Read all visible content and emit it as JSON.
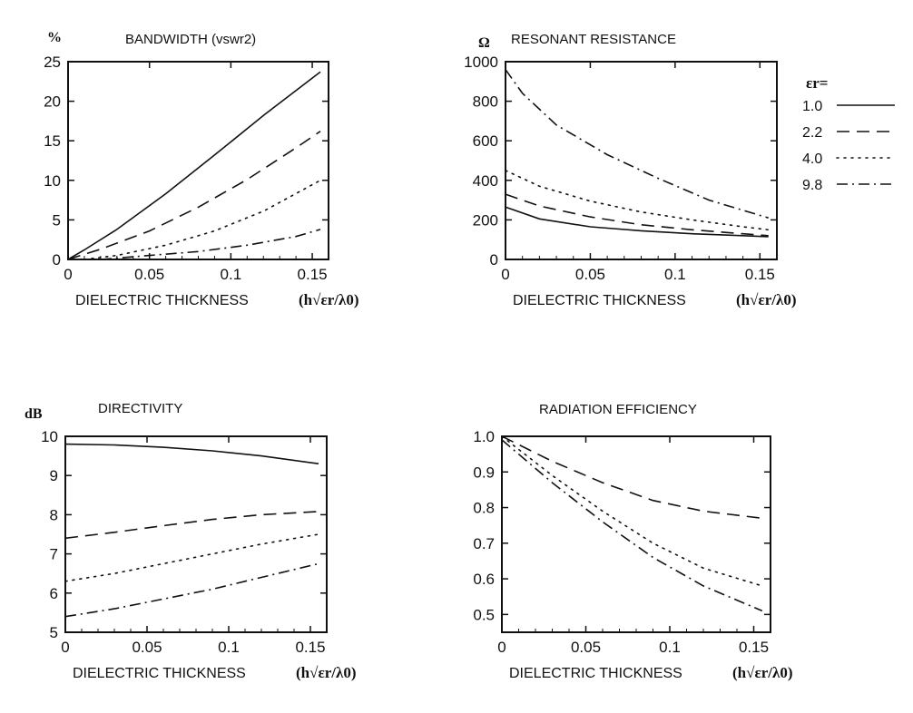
{
  "x_axis_label": "DIELECTRIC THICKNESS",
  "x_axis_symbol": "(h√εr/λ0)",
  "chart_data": [
    {
      "type": "line",
      "title": "BANDWIDTH (vswr2)",
      "ylabel": "%",
      "xlim": [
        0,
        0.16
      ],
      "ylim": [
        0,
        25
      ],
      "xticks": [
        "0",
        "0.05",
        "0.1",
        "0.15"
      ],
      "xtick_values": [
        0,
        0.05,
        0.1,
        0.15
      ],
      "yticks": [
        "0",
        "5",
        "10",
        "15",
        "20",
        "25"
      ],
      "ytick_values": [
        0,
        5,
        10,
        15,
        20,
        25
      ],
      "series": [
        {
          "name": "1.0",
          "style": "solid",
          "x": [
            0,
            0.01,
            0.03,
            0.06,
            0.09,
            0.12,
            0.155
          ],
          "y": [
            0,
            1.2,
            3.8,
            8.3,
            13.2,
            18.2,
            23.7
          ]
        },
        {
          "name": "2.2",
          "style": "dashed",
          "x": [
            0,
            0.02,
            0.05,
            0.08,
            0.11,
            0.14,
            0.155
          ],
          "y": [
            0,
            1.3,
            3.6,
            6.6,
            10.1,
            14.1,
            16.2
          ]
        },
        {
          "name": "4.0",
          "style": "dotted",
          "x": [
            0.01,
            0.03,
            0.06,
            0.09,
            0.12,
            0.155
          ],
          "y": [
            0,
            0.5,
            1.8,
            3.6,
            6.1,
            10.0
          ]
        },
        {
          "name": "9.8",
          "style": "dashdot",
          "x": [
            0.02,
            0.05,
            0.08,
            0.11,
            0.14,
            0.155
          ],
          "y": [
            0,
            0.5,
            1.0,
            1.8,
            2.9,
            3.8
          ]
        }
      ]
    },
    {
      "type": "line",
      "title": "RESONANT RESISTANCE",
      "ylabel": "Ω",
      "xlim": [
        0,
        0.16
      ],
      "ylim": [
        0,
        1000
      ],
      "xticks": [
        "0",
        "0.05",
        "0.1",
        "0.15"
      ],
      "xtick_values": [
        0,
        0.05,
        0.1,
        0.15
      ],
      "yticks": [
        "0",
        "200",
        "400",
        "600",
        "800",
        "1000"
      ],
      "ytick_values": [
        0,
        200,
        400,
        600,
        800,
        1000
      ],
      "series": [
        {
          "name": "1.0",
          "style": "solid",
          "x": [
            0,
            0.02,
            0.05,
            0.08,
            0.11,
            0.14,
            0.155
          ],
          "y": [
            265,
            205,
            165,
            145,
            130,
            120,
            115
          ]
        },
        {
          "name": "2.2",
          "style": "dashed",
          "x": [
            0,
            0.02,
            0.05,
            0.08,
            0.11,
            0.14,
            0.155
          ],
          "y": [
            330,
            270,
            215,
            175,
            150,
            130,
            120
          ]
        },
        {
          "name": "4.0",
          "style": "dotted",
          "x": [
            0,
            0.02,
            0.05,
            0.08,
            0.11,
            0.14,
            0.155
          ],
          "y": [
            450,
            370,
            295,
            240,
            200,
            165,
            150
          ]
        },
        {
          "name": "9.8",
          "style": "dashdot",
          "x": [
            0,
            0.01,
            0.03,
            0.06,
            0.09,
            0.12,
            0.155
          ],
          "y": [
            960,
            840,
            680,
            530,
            410,
            300,
            210
          ]
        }
      ]
    },
    {
      "type": "line",
      "title": "DIRECTIVITY",
      "ylabel": "dB",
      "xlim": [
        0,
        0.16
      ],
      "ylim": [
        5,
        10
      ],
      "xticks": [
        "0",
        "0.05",
        "0.1",
        "0.15"
      ],
      "xtick_values": [
        0,
        0.05,
        0.1,
        0.15
      ],
      "yticks": [
        "5",
        "6",
        "7",
        "8",
        "9",
        "10"
      ],
      "ytick_values": [
        5,
        6,
        7,
        8,
        9,
        10
      ],
      "series": [
        {
          "name": "1.0",
          "style": "solid",
          "x": [
            0,
            0.03,
            0.06,
            0.09,
            0.12,
            0.155
          ],
          "y": [
            9.8,
            9.78,
            9.72,
            9.63,
            9.5,
            9.3
          ]
        },
        {
          "name": "2.2",
          "style": "dashed",
          "x": [
            0,
            0.03,
            0.06,
            0.09,
            0.12,
            0.155
          ],
          "y": [
            7.4,
            7.55,
            7.72,
            7.88,
            8.0,
            8.08
          ]
        },
        {
          "name": "4.0",
          "style": "dotted",
          "x": [
            0,
            0.03,
            0.06,
            0.09,
            0.12,
            0.155
          ],
          "y": [
            6.3,
            6.5,
            6.75,
            7.0,
            7.25,
            7.5
          ]
        },
        {
          "name": "9.8",
          "style": "dashdot",
          "x": [
            0,
            0.03,
            0.06,
            0.09,
            0.12,
            0.155
          ],
          "y": [
            5.4,
            5.6,
            5.85,
            6.1,
            6.4,
            6.75
          ]
        }
      ]
    },
    {
      "type": "line",
      "title": "RADIATION EFFICIENCY",
      "ylabel": "",
      "xlim": [
        0,
        0.16
      ],
      "ylim": [
        0.45,
        1.0
      ],
      "xticks": [
        "0",
        "0.05",
        "0.1",
        "0.15"
      ],
      "xtick_values": [
        0,
        0.05,
        0.1,
        0.15
      ],
      "yticks": [
        "0.5",
        "0.6",
        "0.7",
        "0.8",
        "0.9",
        "1.0"
      ],
      "ytick_values": [
        0.5,
        0.6,
        0.7,
        0.8,
        0.9,
        1.0
      ],
      "series": [
        {
          "name": "1.0",
          "style": "solid",
          "x": [
            0,
            0.155
          ],
          "y": [
            1.0,
            1.0
          ]
        },
        {
          "name": "2.2",
          "style": "dashed",
          "x": [
            0,
            0.03,
            0.06,
            0.09,
            0.12,
            0.155
          ],
          "y": [
            1.0,
            0.93,
            0.87,
            0.82,
            0.79,
            0.77
          ]
        },
        {
          "name": "4.0",
          "style": "dotted",
          "x": [
            0,
            0.03,
            0.06,
            0.09,
            0.12,
            0.155
          ],
          "y": [
            1.0,
            0.89,
            0.79,
            0.7,
            0.63,
            0.58
          ]
        },
        {
          "name": "9.8",
          "style": "dashdot",
          "x": [
            0,
            0.03,
            0.06,
            0.09,
            0.12,
            0.155
          ],
          "y": [
            0.99,
            0.87,
            0.76,
            0.66,
            0.58,
            0.51
          ]
        }
      ]
    }
  ],
  "legend": {
    "heading": "εr=",
    "entries": [
      {
        "label": "1.0",
        "style": "solid"
      },
      {
        "label": "2.2",
        "style": "dashed"
      },
      {
        "label": "4.0",
        "style": "dotted"
      },
      {
        "label": "9.8",
        "style": "dashdot"
      }
    ]
  }
}
